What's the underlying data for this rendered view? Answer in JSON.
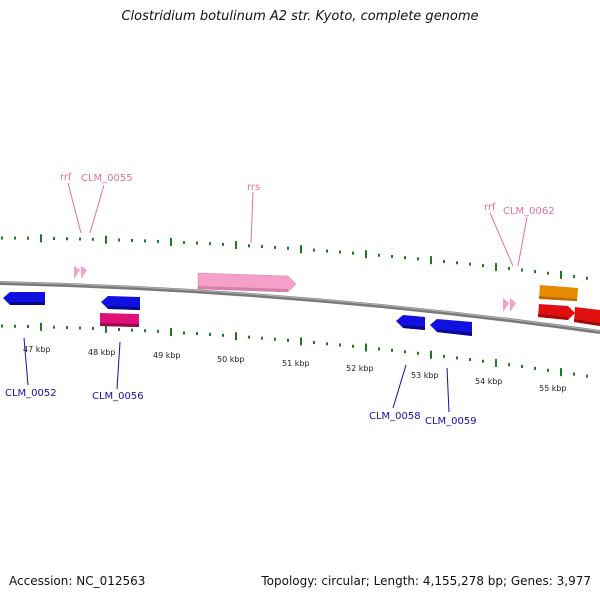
{
  "header": {
    "title": "Clostridium botulinum A2 str. Kyoto, complete genome"
  },
  "footer": {
    "accession": "Accession: NC_012563",
    "summary": "Topology: circular; Length: 4,155,278 bp; Genes: 3,977"
  },
  "colors": {
    "backbone": "#8a8a8a",
    "ticks": "#1e7a1e",
    "cds_blue": "#1010e0",
    "cds_magenta": "#e0107a",
    "rrna_pink": "#f5a0c8",
    "cds_orange": "#e88a00",
    "cds_red": "#e01010",
    "label_blue": "#1010b0",
    "label_pink": "#e070a0"
  },
  "scale": {
    "kbp_labels": [
      "47 kbp",
      "48 kbp",
      "49 kbp",
      "50 kbp",
      "51 kbp",
      "52 kbp",
      "53 kbp",
      "54 kbp",
      "55 kbp"
    ]
  },
  "features": {
    "top_labels": [
      "rrf",
      "CLM_0055",
      "rrs",
      "rrf",
      "CLM_0062"
    ],
    "bottom_labels": [
      "CLM_0052",
      "CLM_0056",
      "CLM_0058",
      "CLM_0059"
    ]
  }
}
